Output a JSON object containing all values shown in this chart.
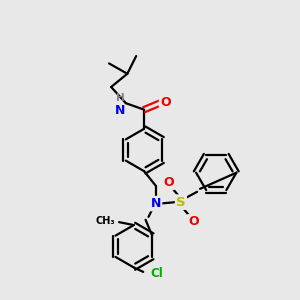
{
  "bg_color": "#e8e8e8",
  "bond_color": "#000000",
  "bond_lw": 1.6,
  "atom_colors": {
    "N": "#0000ee",
    "O": "#ee0000",
    "S": "#bbbb00",
    "Cl": "#00aa00",
    "C": "#000000",
    "H": "#808080"
  },
  "font_size": 8.5,
  "ring_r": 0.72
}
